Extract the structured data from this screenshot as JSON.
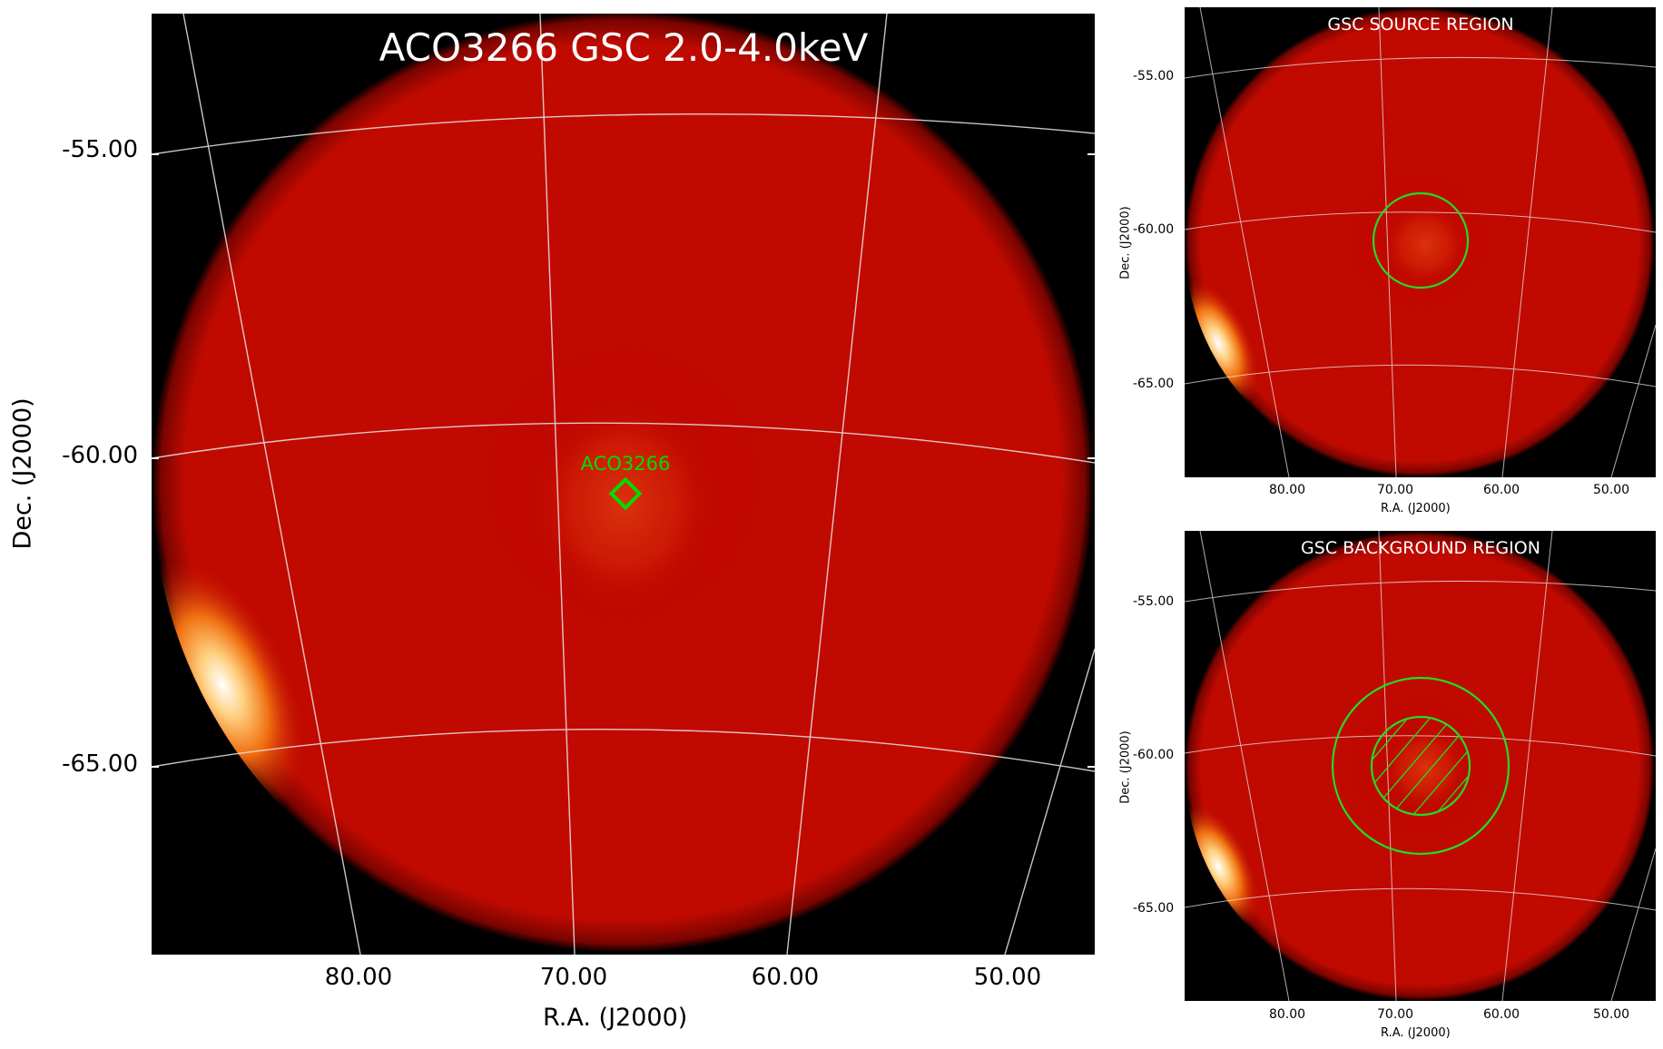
{
  "main_panel": {
    "title": "ACO3266 GSC 2.0-4.0keV",
    "x_axis_label": "R.A. (J2000)",
    "y_axis_label": "Dec. (J2000)",
    "x_ticks": [
      "80.00",
      "70.00",
      "60.00",
      "50.00"
    ],
    "y_ticks": [
      "-55.00",
      "-60.00",
      "-65.00"
    ],
    "source_marker_label": "ACO3266",
    "marker_color": "#00dd00"
  },
  "source_panel": {
    "title": "GSC SOURCE REGION",
    "x_axis_label": "R.A. (J2000)",
    "y_axis_label": "Dec. (J2000)",
    "x_ticks": [
      "80.00",
      "70.00",
      "60.00",
      "50.00"
    ],
    "y_ticks": [
      "-55.00",
      "-60.00",
      "-65.00"
    ]
  },
  "background_panel": {
    "title": "GSC BACKGROUND REGION",
    "x_axis_label": "R.A. (J2000)",
    "y_axis_label": "Dec. (J2000)",
    "x_ticks": [
      "80.00",
      "70.00",
      "60.00",
      "50.00"
    ],
    "y_ticks": [
      "-55.00",
      "-60.00",
      "-65.00"
    ]
  },
  "colors": {
    "field": "#c20a00",
    "background": "#000000",
    "grid": "#e8e8e8",
    "region": "#22dd22"
  }
}
